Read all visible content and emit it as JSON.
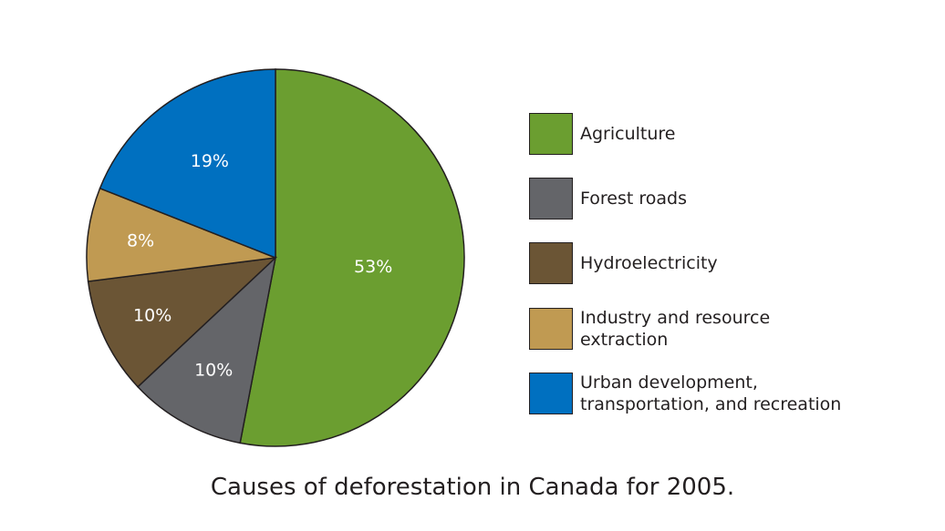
{
  "chart_data": {
    "type": "pie",
    "caption": "Causes of deforestation in Canada for 2005.",
    "legend_position": "right",
    "slices": [
      {
        "name": "Agriculture",
        "value": 53,
        "label": "53%",
        "color": "#6b9e30"
      },
      {
        "name": "Forest roads",
        "value": 10,
        "label": "10%",
        "color": "#646569"
      },
      {
        "name": "Hydroelectricity",
        "value": 10,
        "label": "10%",
        "color": "#6b5535"
      },
      {
        "name": "Industry and resource extraction",
        "value": 8,
        "label": "8%",
        "color": "#c09a52"
      },
      {
        "name": "Urban development, transportation, and recreation",
        "value": 19,
        "label": "19%",
        "color": "#0070c0"
      }
    ]
  },
  "legend": [
    {
      "text": "Agriculture"
    },
    {
      "text": "Forest roads"
    },
    {
      "text": "Hydroelectricity"
    },
    {
      "text": "Industry and resource\nextraction"
    },
    {
      "text": "Urban development,\ntransportation, and recreation"
    }
  ]
}
